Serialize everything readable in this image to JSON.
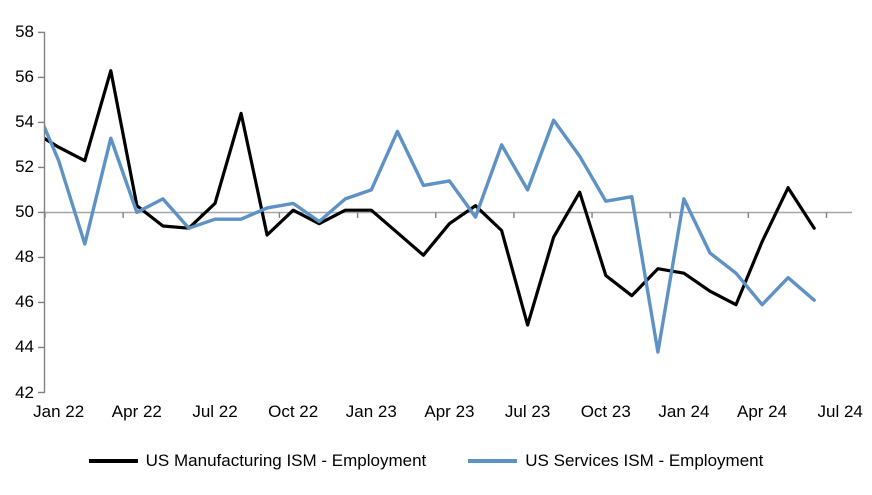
{
  "chart_data": {
    "type": "line",
    "title": "",
    "months": [
      "Dec 21",
      "Jan 22",
      "Feb 22",
      "Mar 22",
      "Apr 22",
      "May 22",
      "Jun 22",
      "Jul 22",
      "Aug 22",
      "Sep 22",
      "Oct 22",
      "Nov 22",
      "Dec 22",
      "Jan 23",
      "Feb 23",
      "Mar 23",
      "Apr 23",
      "May 23",
      "Jun 23",
      "Jul 23",
      "Aug 23",
      "Sep 23",
      "Oct 23",
      "Nov 23",
      "Dec 23",
      "Jan 24",
      "Feb 24",
      "Mar 24",
      "Apr 24",
      "May 24",
      "Jun 24"
    ],
    "note_first_point_clipped": "Dec 21 lies left of the plot edge; its segment enters the chart clipped",
    "series": [
      {
        "name": "US Manufacturing ISM - Employment",
        "color": "#000000",
        "values": [
          53.6,
          52.9,
          52.3,
          56.3,
          50.3,
          49.4,
          49.3,
          50.4,
          54.4,
          49.0,
          50.1,
          49.5,
          50.1,
          50.1,
          49.1,
          48.1,
          49.5,
          50.3,
          49.2,
          45.0,
          48.9,
          50.9,
          47.2,
          46.3,
          47.5,
          47.3,
          46.5,
          45.9,
          48.7,
          51.1,
          49.3
        ]
      },
      {
        "name": "US Services ISM - Employment",
        "color": "#5E92C4",
        "values": [
          55.0,
          52.3,
          48.6,
          53.3,
          50.0,
          50.6,
          49.3,
          49.7,
          49.7,
          50.2,
          50.4,
          49.6,
          50.6,
          51.0,
          53.6,
          51.2,
          51.4,
          49.8,
          53.0,
          51.0,
          54.1,
          52.5,
          50.5,
          50.7,
          43.8,
          50.6,
          48.2,
          47.3,
          45.9,
          47.1,
          46.1
        ]
      }
    ],
    "x_tick_labels": [
      "Jan 22",
      "Apr 22",
      "Jul 22",
      "Oct 22",
      "Jan 23",
      "Apr 23",
      "Jul 23",
      "Oct 23",
      "Jan 24",
      "Apr 24",
      "Jul 24"
    ],
    "x_tick_interval_months": 3,
    "y_axis": {
      "min": 42,
      "max": 58,
      "step": 2
    },
    "baseline_value": 50,
    "grid": "single horizontal line at 50 only",
    "legend_position": "bottom-center",
    "colors": {
      "axis": "#808080",
      "baseline": "#a6a6a6",
      "text": "#000000"
    }
  }
}
